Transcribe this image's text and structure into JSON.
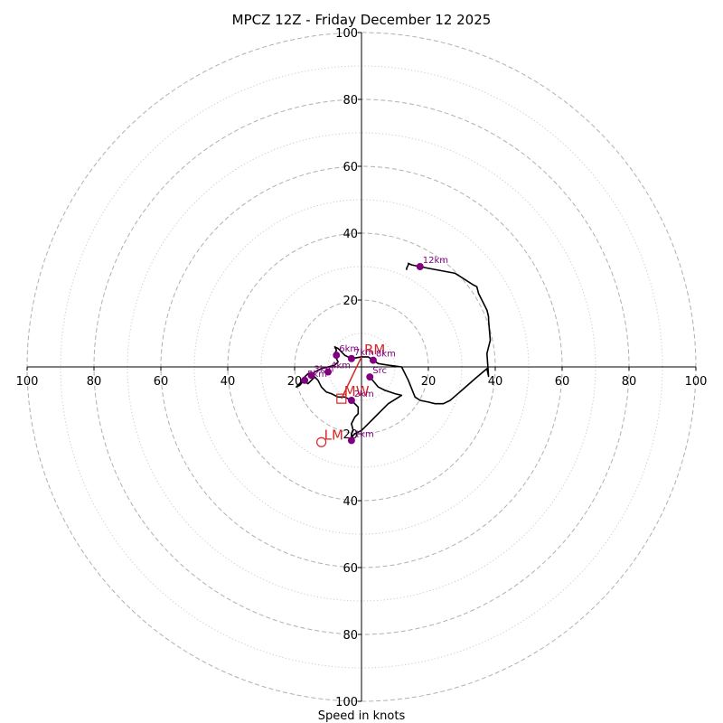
{
  "chart_data": {
    "type": "hodograph",
    "title": "MPCZ 12Z - Friday December 12 2025",
    "xlabel": "Speed in knots",
    "max_speed": 100,
    "dashed_rings": [
      20,
      40,
      60,
      80,
      100
    ],
    "dotted_rings": [
      10,
      30,
      50,
      70,
      90
    ],
    "x_ticks": [
      {
        "value": -100,
        "label": "100"
      },
      {
        "value": -80,
        "label": "80"
      },
      {
        "value": -60,
        "label": "60"
      },
      {
        "value": -40,
        "label": "40"
      },
      {
        "value": -20,
        "label": "20"
      },
      {
        "value": 20,
        "label": "20"
      },
      {
        "value": 40,
        "label": "40"
      },
      {
        "value": 60,
        "label": "60"
      },
      {
        "value": 80,
        "label": "80"
      },
      {
        "value": 100,
        "label": "100"
      }
    ],
    "y_ticks": [
      {
        "value": 100,
        "label": "100"
      },
      {
        "value": 80,
        "label": "80"
      },
      {
        "value": 60,
        "label": "60"
      },
      {
        "value": 40,
        "label": "40"
      },
      {
        "value": 20,
        "label": "20"
      },
      {
        "value": -20,
        "label": "20"
      },
      {
        "value": -40,
        "label": "40"
      },
      {
        "value": -60,
        "label": "60"
      },
      {
        "value": -80,
        "label": "80"
      },
      {
        "value": -100,
        "label": "100"
      }
    ],
    "hodograph_uv": [
      [
        2.5,
        -3
      ],
      [
        5,
        -6
      ],
      [
        7,
        -7
      ],
      [
        10,
        -8
      ],
      [
        12,
        -8.5
      ],
      [
        8,
        -11
      ],
      [
        6,
        -13
      ],
      [
        4,
        -15
      ],
      [
        2,
        -17
      ],
      [
        0,
        -19
      ],
      [
        -2,
        -20
      ],
      [
        -3,
        -21
      ],
      [
        -3,
        -20
      ],
      [
        -2.5,
        -19
      ],
      [
        -3,
        -17
      ],
      [
        -2,
        -15
      ],
      [
        -1,
        -14
      ],
      [
        -1,
        -12
      ],
      [
        -3,
        -10
      ],
      [
        -5,
        -9
      ],
      [
        -7,
        -9
      ],
      [
        -9,
        -8
      ],
      [
        -10.5,
        -7.5
      ],
      [
        -12,
        -6
      ],
      [
        -13,
        -4
      ],
      [
        -14,
        -3
      ],
      [
        -15,
        -4
      ],
      [
        -16,
        -5
      ],
      [
        -17,
        -4.5
      ],
      [
        -17.5,
        -4
      ],
      [
        -18,
        -5
      ],
      [
        -18.5,
        -5.5
      ],
      [
        -19.5,
        -6
      ],
      [
        -18,
        -4.5
      ],
      [
        -17,
        -3
      ],
      [
        -16,
        -2
      ],
      [
        -15,
        -2.5
      ],
      [
        -14,
        -1.5
      ],
      [
        -12,
        -0.5
      ],
      [
        -10,
        0
      ],
      [
        -8,
        0.5
      ],
      [
        -7,
        1.5
      ],
      [
        -7.5,
        2.5
      ],
      [
        -8,
        4
      ],
      [
        -7.5,
        5
      ],
      [
        -8,
        6
      ],
      [
        -7,
        5.5
      ],
      [
        -5,
        3.5
      ],
      [
        -3,
        2.5
      ],
      [
        0,
        3
      ],
      [
        2,
        3
      ],
      [
        3.5,
        2
      ],
      [
        5,
        1
      ],
      [
        8,
        0.5
      ],
      [
        12,
        0
      ],
      [
        14,
        -4
      ],
      [
        16,
        -9
      ],
      [
        17.5,
        -10
      ],
      [
        20,
        -10.5
      ],
      [
        22,
        -11
      ],
      [
        24.5,
        -11
      ],
      [
        26.5,
        -10
      ],
      [
        30,
        -7
      ],
      [
        34,
        -3.5
      ],
      [
        37.5,
        -0.5
      ],
      [
        38,
        -2.8
      ],
      [
        37.5,
        4
      ],
      [
        38.5,
        8
      ],
      [
        38,
        14
      ],
      [
        38,
        15
      ],
      [
        37.5,
        17
      ],
      [
        36,
        20
      ],
      [
        35,
        22
      ],
      [
        34.5,
        24
      ],
      [
        33.5,
        24.5
      ],
      [
        28,
        28
      ],
      [
        20,
        29.5
      ],
      [
        17.5,
        30
      ],
      [
        15,
        30.5
      ],
      [
        14,
        31
      ],
      [
        14,
        30.5
      ],
      [
        13.5,
        29.5
      ],
      [
        13.5,
        29
      ]
    ],
    "height_markers": [
      {
        "label": "Src",
        "u": 2.5,
        "v": -3
      },
      {
        "label": "1km",
        "u": -3,
        "v": -22
      },
      {
        "label": "2km",
        "u": -3,
        "v": -10
      },
      {
        "label": "3km",
        "u": -15,
        "v": -2.5
      },
      {
        "label": "4km",
        "u": -10,
        "v": -1.5
      },
      {
        "label": "5km",
        "u": -17,
        "v": -4
      },
      {
        "label": "6km",
        "u": -7.5,
        "v": 3.5
      },
      {
        "label": "7km",
        "u": -3,
        "v": 2.5
      },
      {
        "label": "8km",
        "u": 3.5,
        "v": 2
      },
      {
        "label": "12km",
        "u": 17.5,
        "v": 30
      }
    ],
    "storm_motions": [
      {
        "label": "RM",
        "u": 0,
        "v": 3,
        "symbol": "none",
        "color": "#d62728"
      },
      {
        "label": "MW",
        "u": -6,
        "v": -9.5,
        "symbol": "square",
        "color": "#d62728"
      },
      {
        "label": "LM",
        "u": -12,
        "v": -22.5,
        "symbol": "circle",
        "color": "#d62728"
      }
    ],
    "shear_vector": {
      "from": [
        0,
        3
      ],
      "to": [
        -6,
        -9.5
      ],
      "color": "#d62728"
    },
    "colors": {
      "trace": "#000000",
      "marker": "#800080",
      "grid": "#b0b0b0",
      "storm": "#d62728"
    }
  }
}
